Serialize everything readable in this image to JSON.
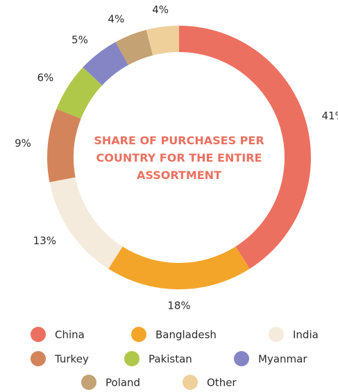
{
  "chart_data": {
    "type": "donut",
    "title": "SHARE OF PURCHASES PER COUNTRY FOR THE ENTIRE ASSORTMENT",
    "categories": [
      "China",
      "Bangladesh",
      "India",
      "Turkey",
      "Pakistan",
      "Myanmar",
      "Poland",
      "Other"
    ],
    "values": [
      41,
      18,
      13,
      9,
      6,
      5,
      4,
      4
    ],
    "value_labels": [
      "41%",
      "18%",
      "13%",
      "9%",
      "6%",
      "5%",
      "4%",
      "4%"
    ],
    "colors": [
      "#ec7060",
      "#f3a52a",
      "#f5ebdc",
      "#d4845a",
      "#b0c84a",
      "#8585c6",
      "#c4a273",
      "#efd09a"
    ],
    "legend": "bottom"
  }
}
